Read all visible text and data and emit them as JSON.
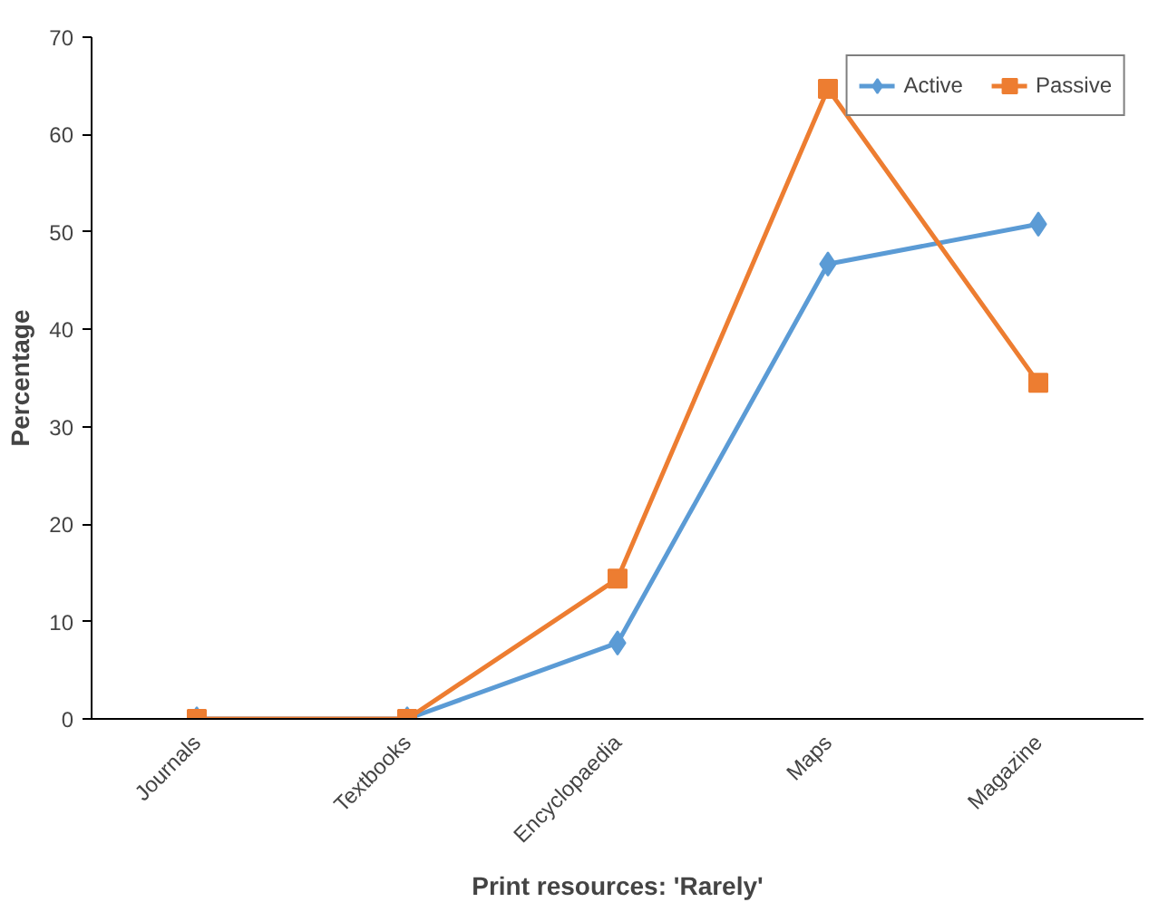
{
  "chart_data": {
    "type": "line",
    "xlabel": "Print resources: 'Rarely'",
    "ylabel": "Percentage",
    "categories": [
      "Journals",
      "Textbooks",
      "Encyclopaedia",
      "Maps",
      "Magazine"
    ],
    "series": [
      {
        "name": "Active",
        "color": "#5b9bd5",
        "marker": "diamond",
        "values": [
          0,
          0,
          7.8,
          46.7,
          50.8
        ]
      },
      {
        "name": "Passive",
        "color": "#ed7d31",
        "marker": "square",
        "values": [
          0,
          0,
          14.4,
          64.7,
          34.5
        ]
      }
    ],
    "ylim": [
      0,
      70
    ],
    "yticks": [
      0,
      10,
      20,
      30,
      40,
      50,
      60,
      70
    ],
    "grid": false,
    "legend": "top right",
    "line_style": "solid"
  }
}
